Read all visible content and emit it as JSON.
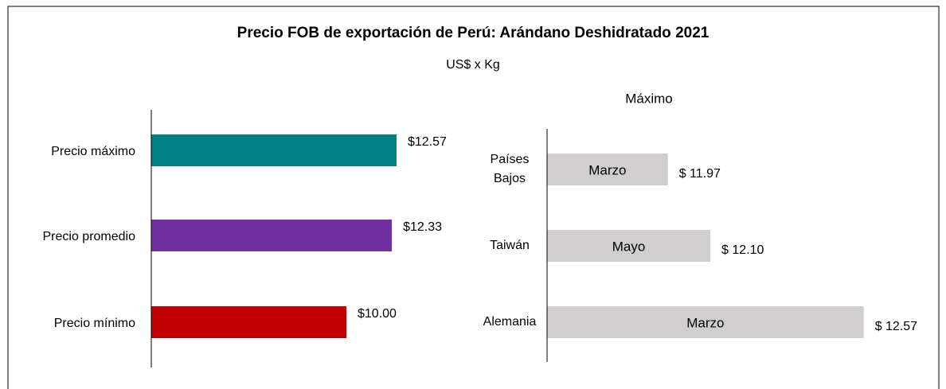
{
  "header": {
    "title": "Precio FOB de exportación de Perú: Arándano Deshidratado 2021",
    "subtitle": "US$ x Kg"
  },
  "chart_data": [
    {
      "type": "hbar",
      "categories": [
        "Precio máximo",
        "Precio promedio",
        "Precio mínimo"
      ],
      "values": [
        12.57,
        12.33,
        10.0
      ],
      "value_labels": [
        "$12.57",
        "$12.33",
        "$10.00"
      ],
      "colors": [
        "#008080",
        "#7030a0",
        "#c00000"
      ],
      "xlim": [
        0,
        14
      ]
    },
    {
      "type": "hbar",
      "title": "Máximo",
      "categories": [
        "Países Bajos",
        "Taiwán",
        "Alemania"
      ],
      "values": [
        11.97,
        12.1,
        12.57
      ],
      "value_labels": [
        "$ 11.97",
        "$ 12.10",
        "$ 12.57"
      ],
      "bar_labels": [
        "Marzo",
        "Mayo",
        "Marzo"
      ],
      "colors": [
        "#d0cece",
        "#d0cece",
        "#d0cece"
      ],
      "xlim": [
        11.6,
        12.7
      ]
    }
  ]
}
